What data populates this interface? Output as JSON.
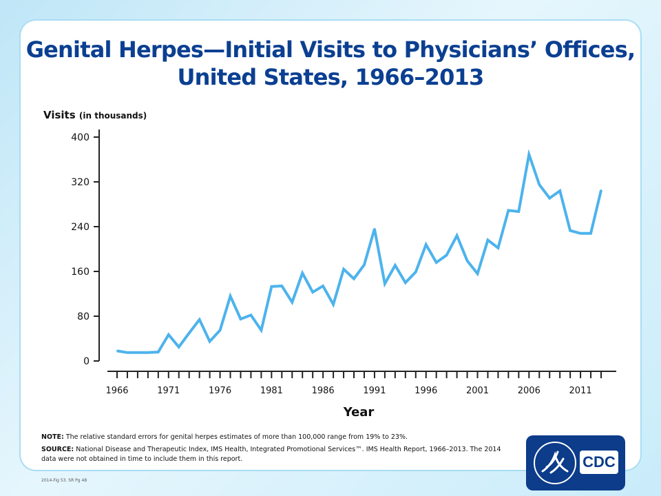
{
  "page": {
    "title_line1": "Genital Herpes—Initial Visits to Physicians’ Offices,",
    "title_line2": "United States, 1966–2013",
    "ylabel_main": "Visits",
    "ylabel_sub": "(in thousands)",
    "xlabel": "Year",
    "note_label": "NOTE:",
    "note_text": "The relative standard errors for genital herpes estimates of more than 100,000 range from 19% to 23%.",
    "source_label": "SOURCE:",
    "source_text": "National Disease and Therapeutic Index, IMS Health, Integrated Promotional Services™. IMS Health Report, 1966–2013. The 2014 data were not obtained in time to include them in this report.",
    "footer_tag": "2014-Fig 53. SR Pg 48",
    "logo_text": "CDC",
    "accent_color": "#0b3f91",
    "line_color": "#4db3ec"
  },
  "chart_data": {
    "type": "line",
    "title": "Genital Herpes—Initial Visits to Physicians’ Offices, United States, 1966–2013",
    "xlabel": "Year",
    "ylabel": "Visits (in thousands)",
    "ylim": [
      0,
      400
    ],
    "yticks": [
      0,
      80,
      160,
      240,
      320,
      400
    ],
    "xlim": [
      1966,
      2013
    ],
    "xtick_labels": [
      "1966",
      "1971",
      "1976",
      "1981",
      "1986",
      "1991",
      "1996",
      "2001",
      "2006",
      "2011"
    ],
    "grid": false,
    "series": [
      {
        "x": [
          1966,
          1967,
          1968,
          1969,
          1970,
          1971,
          1972,
          1973,
          1974,
          1975,
          1976,
          1977,
          1978,
          1979,
          1980,
          1981,
          1982,
          1983,
          1984,
          1985,
          1986,
          1987,
          1988,
          1989,
          1990,
          1991,
          1992,
          1993,
          1994,
          1995,
          1996,
          1997,
          1998,
          1999,
          2000,
          2001,
          2002,
          2003,
          2004,
          2005,
          2006,
          2007,
          2008,
          2009,
          2010,
          2011,
          2012,
          2013
        ],
        "values": [
          18,
          15,
          15,
          15,
          16,
          47,
          25,
          50,
          74,
          35,
          55,
          116,
          75,
          82,
          55,
          133,
          134,
          105,
          157,
          123,
          134,
          101,
          164,
          147,
          172,
          236,
          138,
          171,
          140,
          159,
          208,
          176,
          189,
          224,
          179,
          156,
          216,
          202,
          269,
          267,
          369,
          315,
          291,
          304,
          233,
          228,
          228,
          305
        ]
      }
    ]
  }
}
